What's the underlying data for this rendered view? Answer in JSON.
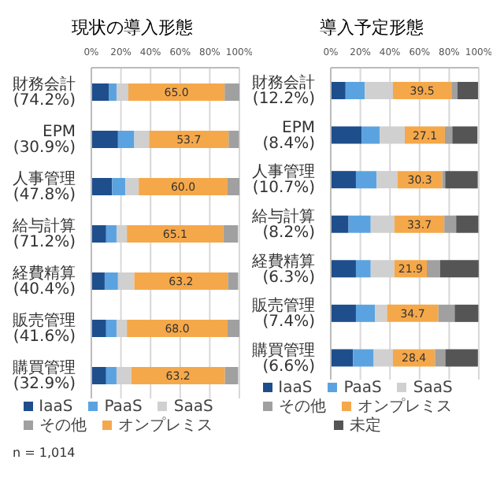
{
  "chart_data": [
    {
      "type": "bar",
      "orientation": "horizontal",
      "stacked": true,
      "title": "現状の導入形態",
      "categories": [
        "財務会計(74.2%)",
        "EPM(30.9%)",
        "人事管理(47.8%)",
        "給与計算(71.2%)",
        "経費精算(40.4%)",
        "販売管理(41.6%)",
        "購買管理(32.9%)"
      ],
      "series": [
        {
          "name": "IaaS",
          "color": "#1f4e8c",
          "values": [
            12,
            18,
            14,
            10,
            9,
            10,
            10
          ]
        },
        {
          "name": "PaaS",
          "color": "#5ba3e0",
          "values": [
            5,
            11,
            9,
            7,
            9,
            7,
            7
          ]
        },
        {
          "name": "SaaS",
          "color": "#d0d0d0",
          "values": [
            8,
            10,
            9,
            7,
            11,
            7,
            10
          ]
        },
        {
          "name": "オンプレミス",
          "color": "#f5a84a",
          "values": [
            65.0,
            53.7,
            60.0,
            65.1,
            63.2,
            68.0,
            63.2
          ],
          "value_labels": [
            "65.0",
            "53.7",
            "60.0",
            "65.1",
            "63.2",
            "68.0",
            "63.2"
          ]
        },
        {
          "name": "その他",
          "color": "#a0a0a0",
          "values": [
            10,
            7,
            8,
            10,
            7,
            8,
            9
          ]
        }
      ],
      "xlim": [
        0,
        100
      ],
      "xticks": [
        {
          "value": 0,
          "label": "0%"
        },
        {
          "value": 20,
          "label": "20%"
        },
        {
          "value": 40,
          "label": "40%"
        },
        {
          "value": 60,
          "label": "60%"
        },
        {
          "value": 80,
          "label": "80%"
        },
        {
          "value": 100,
          "label": "100%"
        }
      ],
      "grid": "x",
      "legend": "bottom",
      "annotations": [
        "n = 1,014"
      ]
    },
    {
      "type": "bar",
      "orientation": "horizontal",
      "stacked": true,
      "title": "導入予定形態",
      "categories": [
        "財務会計(12.2%)",
        "EPM(8.4%)",
        "人事管理(10.7%)",
        "給与計算(8.2%)",
        "経費精算(6.3%)",
        "販売管理(7.4%)",
        "購買管理(6.6%)"
      ],
      "series": [
        {
          "name": "IaaS",
          "color": "#1f4e8c",
          "values": [
            10,
            21,
            17,
            12,
            17,
            17,
            15
          ]
        },
        {
          "name": "PaaS",
          "color": "#5ba3e0",
          "values": [
            13,
            12,
            14,
            15,
            10,
            13,
            14
          ]
        },
        {
          "name": "SaaS",
          "color": "#d0d0d0",
          "values": [
            19,
            17,
            14,
            16,
            16,
            8,
            13
          ]
        },
        {
          "name": "オンプレミス",
          "color": "#f5a84a",
          "values": [
            39.5,
            27.1,
            30.3,
            33.7,
            21.9,
            34.7,
            28.4
          ],
          "value_labels": [
            "39.5",
            "27.1",
            "30.3",
            "33.7",
            "21.9",
            "34.7",
            "28.4"
          ]
        },
        {
          "name": "その他",
          "color": "#a0a0a0",
          "values": [
            4,
            5,
            2,
            8,
            9,
            11,
            7
          ]
        },
        {
          "name": "未定",
          "color": "#555555",
          "values": [
            14,
            17,
            22,
            15,
            26,
            16,
            22
          ]
        }
      ],
      "xlim": [
        0,
        100
      ],
      "xticks": [
        {
          "value": 0,
          "label": "0%"
        },
        {
          "value": 20,
          "label": "20%"
        },
        {
          "value": 40,
          "label": "40%"
        },
        {
          "value": 60,
          "label": "60%"
        },
        {
          "value": 80,
          "label": "80%"
        },
        {
          "value": 100,
          "label": "100%"
        }
      ],
      "grid": "x",
      "legend": "bottom"
    }
  ]
}
